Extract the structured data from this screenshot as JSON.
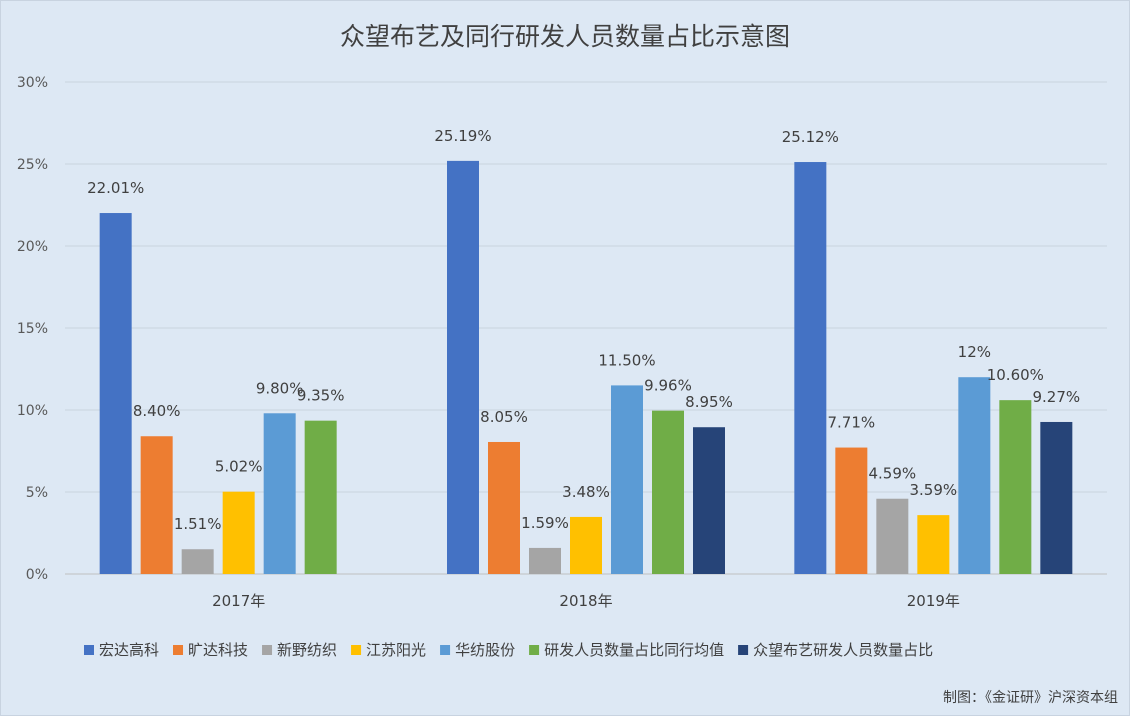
{
  "chart_data": {
    "type": "bar",
    "title": "众望布艺及同行研发人员数量占比示意图",
    "categories": [
      "2017年",
      "2018年",
      "2019年"
    ],
    "series": [
      {
        "name": "宏达高科",
        "color": "#4472c4",
        "values": [
          22.01,
          25.19,
          25.12
        ],
        "labels": [
          "22.01%",
          "25.19%",
          "25.12%"
        ]
      },
      {
        "name": "旷达科技",
        "color": "#ed7d31",
        "values": [
          8.4,
          8.05,
          7.71
        ],
        "labels": [
          "8.40%",
          "8.05%",
          "7.71%"
        ]
      },
      {
        "name": "新野纺织",
        "color": "#a5a5a5",
        "values": [
          1.51,
          1.59,
          4.59
        ],
        "labels": [
          "1.51%",
          "1.59%",
          "4.59%"
        ]
      },
      {
        "name": "江苏阳光",
        "color": "#ffc000",
        "values": [
          5.02,
          3.48,
          3.59
        ],
        "labels": [
          "5.02%",
          "3.48%",
          "3.59%"
        ]
      },
      {
        "name": "华纺股份",
        "color": "#5b9bd5",
        "values": [
          9.8,
          11.5,
          12
        ],
        "labels": [
          "9.80%",
          "11.50%",
          "12%"
        ]
      },
      {
        "name": "研发人员数量占比同行均值",
        "color": "#70ad47",
        "values": [
          9.35,
          9.96,
          10.6
        ],
        "labels": [
          "9.35%",
          "9.96%",
          "10.60%"
        ]
      },
      {
        "name": "众望布艺研发人员数量占比",
        "color": "#264478",
        "values": [
          null,
          8.95,
          9.27
        ],
        "labels": [
          null,
          "8.95%",
          "9.27%"
        ]
      }
    ],
    "y_ticks": [
      "0%",
      "5%",
      "10%",
      "15%",
      "20%",
      "25%",
      "30%"
    ],
    "ylim": [
      0,
      30
    ],
    "grid": true,
    "legend": "bottom"
  },
  "credit": "制图：《金证研》沪深资本组"
}
